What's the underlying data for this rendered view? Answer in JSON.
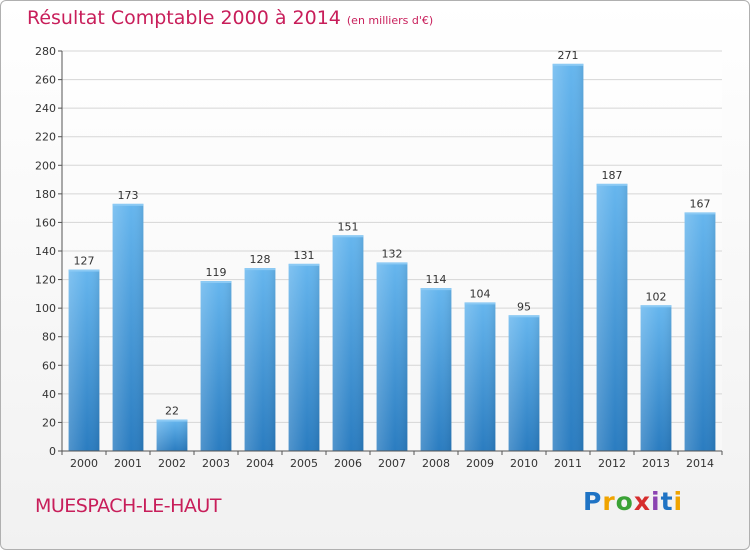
{
  "header": {
    "title": "Résultat Comptable 2000 à 2014",
    "subtitle": "(en milliers d'€)"
  },
  "footer": {
    "place": "MUESPACH-LE-HAUT",
    "logo_letters": [
      "P",
      "r",
      "o",
      "x",
      "i",
      "t",
      "i"
    ]
  },
  "colors": {
    "title": "#c81e5a",
    "bar_top": "#66b6ee",
    "bar_bottom": "#2a7cc0",
    "grid": "#d6d6d6"
  },
  "chart_data": {
    "type": "bar",
    "title": "Résultat Comptable 2000 à 2014",
    "subtitle": "(en milliers d'€)",
    "xlabel": "",
    "ylabel": "",
    "categories": [
      "2000",
      "2001",
      "2002",
      "2003",
      "2004",
      "2005",
      "2006",
      "2007",
      "2008",
      "2009",
      "2010",
      "2011",
      "2012",
      "2013",
      "2014"
    ],
    "values": [
      127,
      173,
      22,
      119,
      128,
      131,
      151,
      132,
      114,
      104,
      95,
      271,
      187,
      102,
      167
    ],
    "ylim": [
      0,
      280
    ],
    "yticks": [
      0,
      20,
      40,
      60,
      80,
      100,
      120,
      140,
      160,
      180,
      200,
      220,
      240,
      260,
      280
    ],
    "grid": true,
    "data_labels": true
  }
}
